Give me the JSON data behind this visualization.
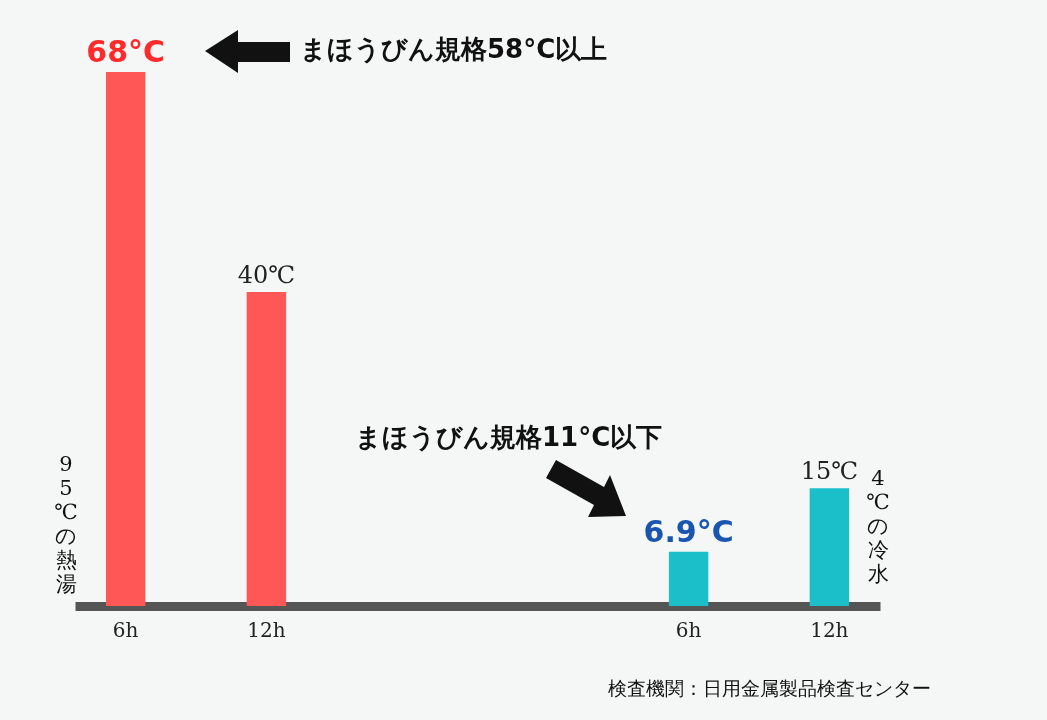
{
  "chart_data": {
    "type": "bar",
    "categories": [
      "6h",
      "12h",
      null,
      null,
      "6h",
      "12h"
    ],
    "values": [
      68,
      40,
      null,
      null,
      6.9,
      15
    ],
    "colors": [
      "#ff5656",
      null,
      null,
      null,
      "#1bbfc9",
      "#1bbfc9"
    ],
    "value_labels": [
      "68°C",
      "40℃",
      null,
      null,
      "6.9°C",
      "15℃"
    ],
    "annotations": [
      "まほうびん規格58°C以上",
      "まほうびん規格11°C以下",
      "95℃の熱湯",
      "4℃の冷水",
      "検査機関：日用金属製品検査センター"
    ]
  }
}
